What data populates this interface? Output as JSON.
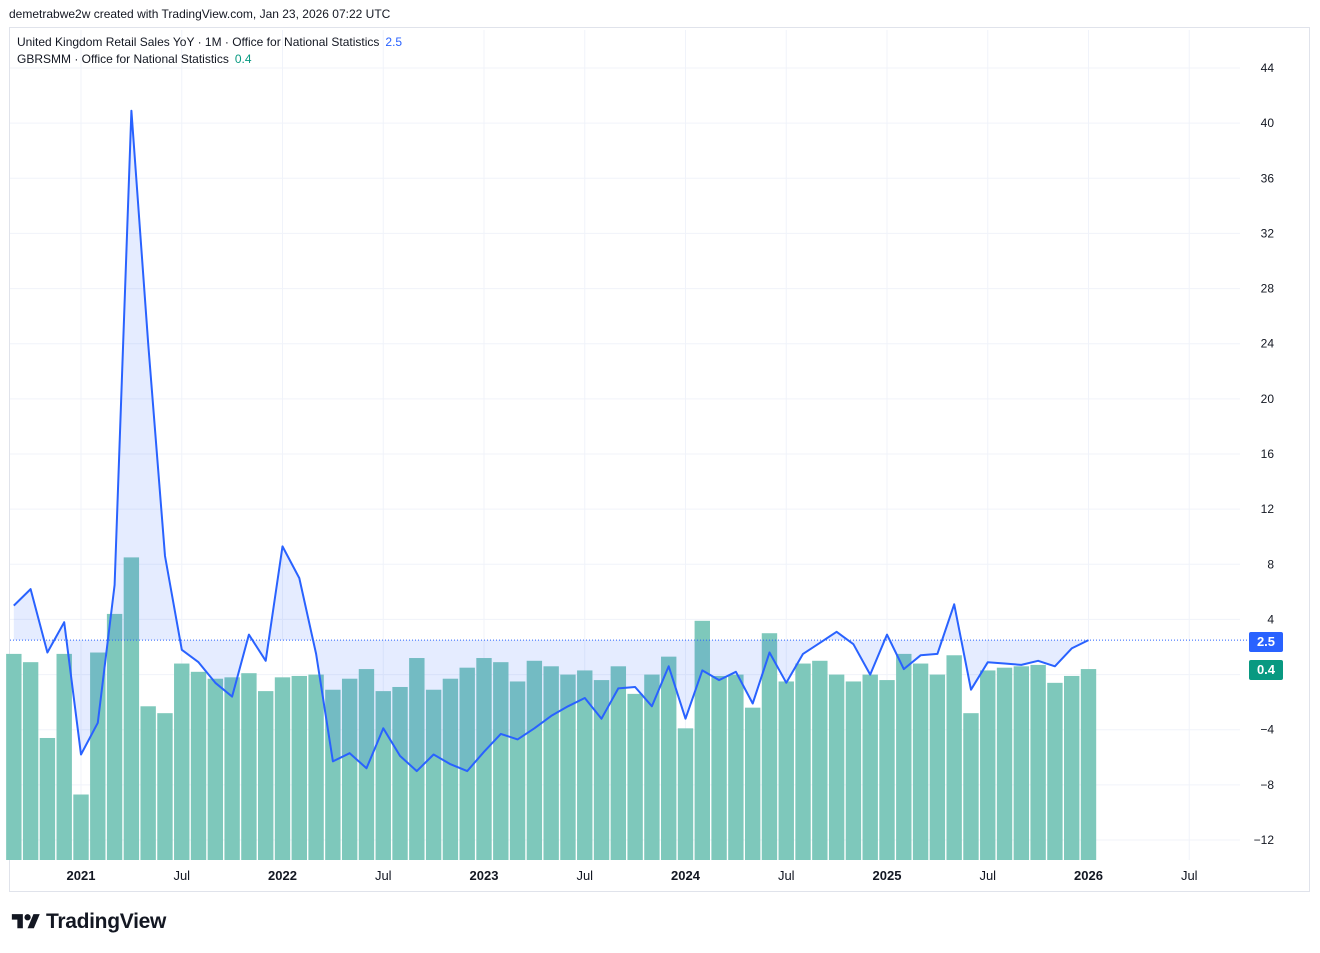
{
  "header": {
    "attribution": "demetrabwe2w created with TradingView.com, Jan 23, 2026 07:22 UTC"
  },
  "legend": {
    "series1_label": "United Kingdom Retail Sales YoY · 1M · Office for National Statistics",
    "series1_value": "2.5",
    "series2_label": "GBRSMM · Office for National Statistics",
    "series2_value": "0.4"
  },
  "footer": {
    "brand": "TradingView"
  },
  "colors": {
    "line": "#2962ff",
    "line_fill": "rgba(41,98,255,0.12)",
    "bar": "#7ec8bb",
    "bar_badge": "#089981",
    "grid": "#f0f3fa",
    "axis_text": "#131722"
  },
  "chart_data": {
    "type": "line+bar",
    "x_axis": {
      "tick_labels": [
        "2021",
        "Jul",
        "2022",
        "Jul",
        "2023",
        "Jul",
        "2024",
        "Jul",
        "2025",
        "Jul",
        "2026",
        "Jul"
      ],
      "tick_dates": [
        "2021-01",
        "2021-07",
        "2022-01",
        "2022-07",
        "2023-01",
        "2023-07",
        "2024-01",
        "2024-07",
        "2025-01",
        "2025-07",
        "2026-01",
        "2026-07"
      ],
      "bold_labels": [
        "2021",
        "2022",
        "2023",
        "2024",
        "2025",
        "2026"
      ],
      "range": [
        "2020-09",
        "2026-12"
      ]
    },
    "y_axis": {
      "ticks": [
        44,
        40,
        36,
        32,
        28,
        24,
        20,
        16,
        12,
        8,
        4,
        0,
        -4,
        -8,
        -12
      ],
      "tick_labels": [
        "44",
        "40",
        "36",
        "32",
        "28",
        "24",
        "20",
        "16",
        "12",
        "8",
        "4",
        "",
        "−4",
        "−8",
        "−12"
      ],
      "range": [
        -14,
        46
      ]
    },
    "last_value_line": 2.5,
    "series": [
      {
        "name": "United Kingdom Retail Sales YoY",
        "type": "line",
        "start": "2020-09",
        "values": [
          5.0,
          6.2,
          1.6,
          3.8,
          -5.8,
          -3.5,
          6.5,
          40.9,
          24.0,
          8.6,
          1.8,
          0.9,
          -0.6,
          -1.6,
          2.9,
          1.0,
          9.3,
          7.0,
          1.5,
          -6.3,
          -5.7,
          -6.8,
          -3.9,
          -5.9,
          -7.0,
          -5.8,
          -6.5,
          -7.0,
          -5.6,
          -4.3,
          -4.7,
          -3.9,
          -3.0,
          -2.3,
          -1.7,
          -3.2,
          -1.0,
          -0.9,
          -2.3,
          0.6,
          -3.2,
          0.3,
          -0.4,
          0.2,
          -2.1,
          1.6,
          -0.6,
          1.5,
          2.3,
          3.1,
          2.2,
          0.0,
          2.9,
          0.4,
          1.4,
          1.5,
          5.1,
          -1.1,
          0.9,
          0.8,
          0.7,
          1.0,
          0.6,
          1.9,
          2.5
        ]
      },
      {
        "name": "GBRSMM",
        "type": "bar",
        "start": "2020-09",
        "values": [
          1.5,
          0.9,
          -4.6,
          1.5,
          -8.7,
          1.6,
          4.4,
          8.5,
          -2.3,
          -2.8,
          0.8,
          0.2,
          -0.3,
          -0.2,
          0.1,
          -1.2,
          -0.2,
          -0.1,
          0.0,
          -1.1,
          -0.3,
          0.4,
          -1.2,
          -0.9,
          1.2,
          -1.1,
          -0.3,
          0.5,
          1.2,
          0.9,
          -0.5,
          1.0,
          0.6,
          0.0,
          0.3,
          -0.4,
          0.6,
          -1.4,
          0.0,
          1.3,
          -3.9,
          3.9,
          -0.1,
          0.0,
          -2.4,
          3.0,
          -0.5,
          0.8,
          1.0,
          0.0,
          -0.5,
          0.0,
          -0.4,
          1.5,
          0.8,
          0.0,
          1.4,
          -2.8,
          0.3,
          0.5,
          0.6,
          0.7,
          -0.6,
          -0.1,
          0.4
        ]
      }
    ]
  }
}
